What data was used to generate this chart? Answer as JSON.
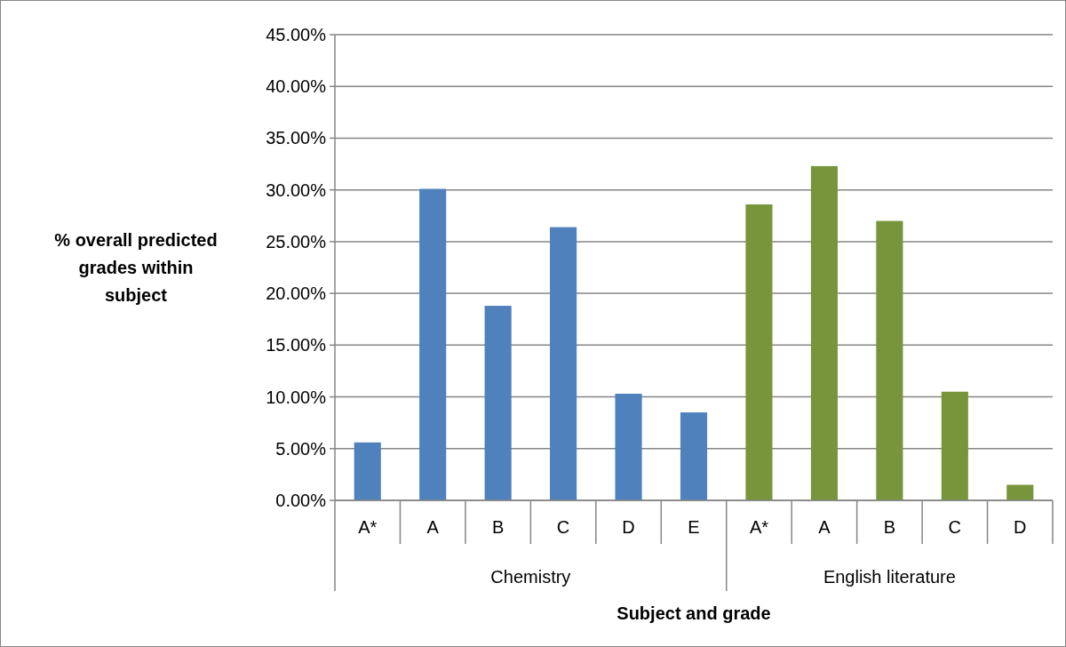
{
  "chart_data": {
    "type": "bar",
    "xlabel": "Subject and grade",
    "ylabel": "% overall predicted grades within subject",
    "categories": [
      "A*",
      "A",
      "B",
      "C",
      "D",
      "E",
      "A*",
      "A",
      "B",
      "C",
      "D"
    ],
    "series": [
      {
        "color": "#4f81bd",
        "values": [
          5.6,
          30.1,
          18.8,
          26.4,
          10.3,
          8.5,
          null,
          null,
          null,
          null,
          null
        ]
      },
      {
        "color": "#77963b",
        "values": [
          null,
          null,
          null,
          null,
          null,
          null,
          28.6,
          32.3,
          27.0,
          10.5,
          1.5
        ]
      }
    ],
    "annotations": [
      "Chemistry",
      "English literature"
    ],
    "ylim": [
      0,
      45
    ],
    "yticks": [
      {
        "value": 0,
        "label": "0.00%"
      },
      {
        "value": 5,
        "label": "5.00%"
      },
      {
        "value": 10,
        "label": "10.00%"
      },
      {
        "value": 15,
        "label": "15.00%"
      },
      {
        "value": 20,
        "label": "20.00%"
      },
      {
        "value": 25,
        "label": "25.00%"
      },
      {
        "value": 30,
        "label": "30.00%"
      },
      {
        "value": 35,
        "label": "35.00%"
      },
      {
        "value": 40,
        "label": "40.00%"
      },
      {
        "value": 45,
        "label": "45.00%"
      }
    ],
    "grid": "y"
  }
}
